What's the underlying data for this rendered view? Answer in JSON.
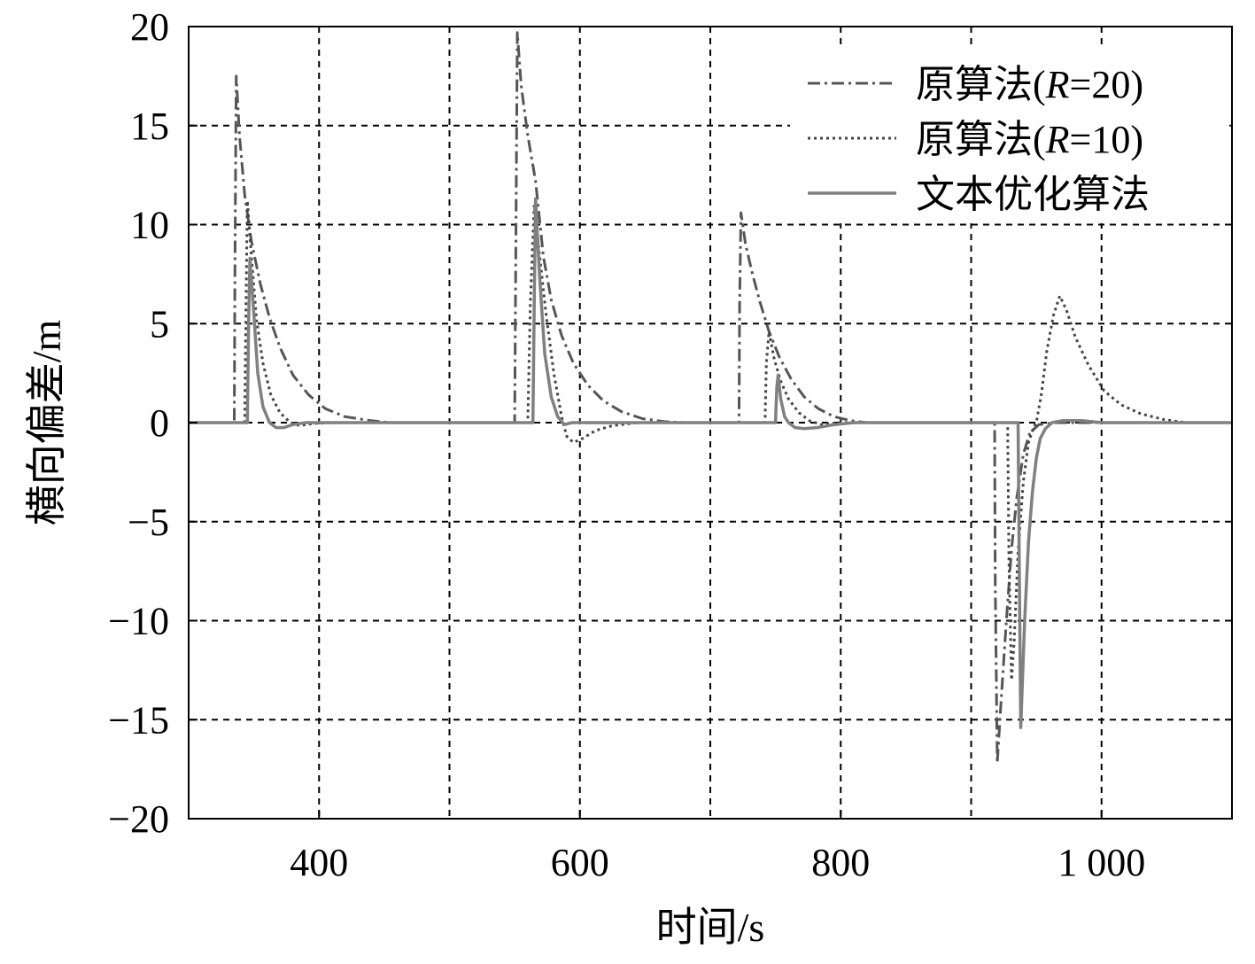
{
  "chart_data": {
    "type": "line",
    "xlabel": "时间/s",
    "ylabel": "横向偏差/m",
    "xlim": [
      300,
      1100
    ],
    "ylim": [
      -20,
      20
    ],
    "x_ticks": [
      {
        "value": 400,
        "label": "400"
      },
      {
        "value": 600,
        "label": "600"
      },
      {
        "value": 800,
        "label": "800"
      },
      {
        "value": 1000,
        "label": "1 000"
      }
    ],
    "y_ticks": [
      {
        "value": 20,
        "label": "20"
      },
      {
        "value": 15,
        "label": "15"
      },
      {
        "value": 10,
        "label": "10"
      },
      {
        "value": 5,
        "label": "5"
      },
      {
        "value": 0,
        "label": "0"
      },
      {
        "value": -5,
        "label": "−5"
      },
      {
        "value": -10,
        "label": "−10"
      },
      {
        "value": -15,
        "label": "−15"
      },
      {
        "value": -20,
        "label": "−20"
      }
    ],
    "grid": true,
    "legend_position": "top-right",
    "series": [
      {
        "name": "原算法(R=20)",
        "name_parts": [
          "原算法(",
          "R",
          "=20)"
        ],
        "style": "dashdot",
        "color": "#555555",
        "points": [
          [
            300,
            0
          ],
          [
            335,
            0
          ],
          [
            335.5,
            8
          ],
          [
            336.5,
            17.5
          ],
          [
            339,
            14.5
          ],
          [
            343,
            11.5
          ],
          [
            348,
            9.2
          ],
          [
            355,
            7
          ],
          [
            362,
            5.3
          ],
          [
            370,
            3.8
          ],
          [
            380,
            2.4
          ],
          [
            392,
            1.4
          ],
          [
            405,
            0.7
          ],
          [
            420,
            0.3
          ],
          [
            440,
            0.1
          ],
          [
            455,
            0
          ],
          [
            550,
            0
          ],
          [
            551,
            10
          ],
          [
            552,
            19.7
          ],
          [
            555,
            17
          ],
          [
            560,
            14.5
          ],
          [
            566,
            12.2
          ],
          [
            572,
            8.4
          ],
          [
            578,
            6.2
          ],
          [
            586,
            4.4
          ],
          [
            595,
            3
          ],
          [
            606,
            1.9
          ],
          [
            618,
            1.1
          ],
          [
            632,
            0.55
          ],
          [
            648,
            0.2
          ],
          [
            665,
            0.05
          ],
          [
            680,
            0
          ],
          [
            722,
            0
          ],
          [
            722.5,
            6
          ],
          [
            723.5,
            10.6
          ],
          [
            727,
            9
          ],
          [
            732,
            7.6
          ],
          [
            738,
            6.1
          ],
          [
            745,
            4.6
          ],
          [
            753,
            3.3
          ],
          [
            762,
            2.2
          ],
          [
            772,
            1.3
          ],
          [
            783,
            0.7
          ],
          [
            795,
            0.3
          ],
          [
            808,
            0.1
          ],
          [
            820,
            0
          ],
          [
            918,
            0
          ],
          [
            918.5,
            -8
          ],
          [
            920,
            -17.2
          ],
          [
            923,
            -14
          ],
          [
            927,
            -10
          ],
          [
            931,
            -6.4
          ],
          [
            935,
            -3.8
          ],
          [
            940,
            -1.6
          ],
          [
            945,
            -0.5
          ],
          [
            952,
            -0.1
          ],
          [
            965,
            0
          ],
          [
            1100,
            0
          ]
        ]
      },
      {
        "name": "原算法(R=10)",
        "name_parts": [
          "原算法(",
          "R",
          "=10)"
        ],
        "style": "dotted",
        "color": "#444444",
        "points": [
          [
            300,
            0
          ],
          [
            343,
            0
          ],
          [
            344,
            6
          ],
          [
            345,
            11.2
          ],
          [
            348,
            8.5
          ],
          [
            352,
            5.2
          ],
          [
            357,
            3
          ],
          [
            363,
            1.4
          ],
          [
            370,
            0.5
          ],
          [
            378,
            0
          ],
          [
            385,
            -0.15
          ],
          [
            395,
            -0.05
          ],
          [
            410,
            0
          ],
          [
            560,
            0
          ],
          [
            562,
            6
          ],
          [
            565,
            11
          ],
          [
            569,
            8.5
          ],
          [
            574,
            5.5
          ],
          [
            580,
            2.5
          ],
          [
            586,
            0.3
          ],
          [
            590,
            -0.7
          ],
          [
            595,
            -1
          ],
          [
            602,
            -0.8
          ],
          [
            612,
            -0.4
          ],
          [
            625,
            -0.15
          ],
          [
            645,
            0
          ],
          [
            742,
            0
          ],
          [
            743,
            3
          ],
          [
            745,
            4.6
          ],
          [
            749,
            3.2
          ],
          [
            754,
            2.1
          ],
          [
            760,
            1.2
          ],
          [
            768,
            0.5
          ],
          [
            776,
            0.1
          ],
          [
            785,
            -0.1
          ],
          [
            798,
            0
          ],
          [
            928,
            0
          ],
          [
            929,
            -7
          ],
          [
            931,
            -13
          ],
          [
            933,
            -11
          ],
          [
            936,
            -6.5
          ],
          [
            940,
            -3
          ],
          [
            944,
            -1
          ],
          [
            948,
            -0.2
          ],
          [
            950,
            0
          ],
          [
            954,
            1.5
          ],
          [
            958,
            3.6
          ],
          [
            963,
            5.4
          ],
          [
            968,
            6.4
          ],
          [
            973,
            5.7
          ],
          [
            980,
            4.3
          ],
          [
            990,
            2.9
          ],
          [
            1002,
            1.6
          ],
          [
            1015,
            0.9
          ],
          [
            1030,
            0.45
          ],
          [
            1048,
            0.15
          ],
          [
            1065,
            0
          ],
          [
            1100,
            0
          ]
        ]
      },
      {
        "name": "文本优化算法",
        "name_parts": [
          "文本优化算法"
        ],
        "style": "solid",
        "color": "#808080",
        "points": [
          [
            300,
            0
          ],
          [
            345,
            0
          ],
          [
            346,
            5
          ],
          [
            347,
            8.3
          ],
          [
            350,
            5.5
          ],
          [
            353,
            2.5
          ],
          [
            357,
            0.8
          ],
          [
            362,
            0
          ],
          [
            367,
            -0.25
          ],
          [
            373,
            -0.25
          ],
          [
            380,
            -0.1
          ],
          [
            390,
            0
          ],
          [
            564,
            0
          ],
          [
            565,
            6
          ],
          [
            566,
            11.3
          ],
          [
            569,
            7.5
          ],
          [
            573,
            3.5
          ],
          [
            578,
            1.3
          ],
          [
            583,
            0.3
          ],
          [
            588,
            -0.1
          ],
          [
            594,
            0
          ],
          [
            750,
            0
          ],
          [
            751,
            1.8
          ],
          [
            752,
            2.4
          ],
          [
            754,
            1.2
          ],
          [
            757,
            0.3
          ],
          [
            760,
            0
          ],
          [
            765,
            -0.25
          ],
          [
            772,
            -0.3
          ],
          [
            782,
            -0.25
          ],
          [
            795,
            -0.1
          ],
          [
            810,
            0
          ],
          [
            936,
            0
          ],
          [
            937,
            -8
          ],
          [
            938,
            -15.4
          ],
          [
            941,
            -10
          ],
          [
            944,
            -6
          ],
          [
            947,
            -3.5
          ],
          [
            950,
            -1.8
          ],
          [
            953,
            -0.8
          ],
          [
            957,
            -0.3
          ],
          [
            962,
            0
          ],
          [
            970,
            0.1
          ],
          [
            985,
            0.1
          ],
          [
            1000,
            0
          ],
          [
            1100,
            0
          ]
        ]
      }
    ]
  }
}
